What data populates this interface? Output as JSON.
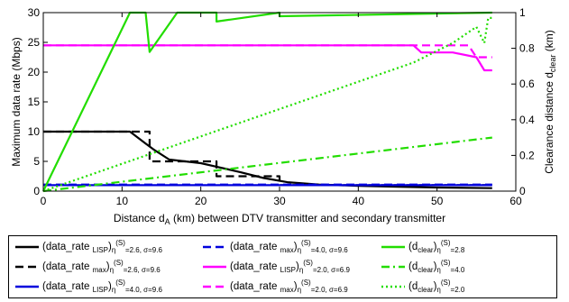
{
  "chart_data": {
    "type": "line",
    "xlabel": "Distance  d_A (km) between DTV transmitter and secondary transmitter",
    "xlabel_parts": {
      "pre": "Distance  d",
      "sub": "A",
      "post": " (km) between DTV transmitter and secondary transmitter"
    },
    "ylabel_left": "Maximum data rate (Mbps)",
    "ylabel_right": {
      "main": "Clearance distance  d",
      "sub": "clear",
      "post": " (km)"
    },
    "xlim": [
      0,
      60
    ],
    "ylim_left": [
      0,
      30
    ],
    "ylim_right": [
      0,
      1
    ],
    "x_ticks": [
      "0",
      "10",
      "20",
      "30",
      "40",
      "50",
      "60"
    ],
    "y_left_ticks": [
      "0",
      "5",
      "10",
      "15",
      "20",
      "25",
      "30"
    ],
    "y_right_ticks": [
      "0",
      "0.2",
      "0.4",
      "0.6",
      "0.8",
      "1"
    ],
    "grid": false,
    "legend_position": "bottom",
    "series": [
      {
        "legend": "(data_rate LISP)η(S)=2.6, σ=9.6",
        "axis": "left",
        "color": "#000000",
        "style": "solid",
        "x": [
          0,
          1,
          5,
          10,
          11,
          12,
          13,
          14,
          16,
          18,
          20,
          22,
          25,
          28,
          31,
          35,
          40,
          45,
          50,
          57
        ],
        "y": [
          10,
          10,
          10,
          10,
          10,
          9,
          8,
          7,
          5.3,
          5,
          4.7,
          4.1,
          3.2,
          2.2,
          1.5,
          1.1,
          0.9,
          0.75,
          0.6,
          0.5
        ]
      },
      {
        "legend": "(data_rate max)η(S)=2.6, σ=9.6",
        "axis": "left",
        "color": "#000000",
        "style": "dashed",
        "x": [
          0,
          1,
          10,
          13.5,
          13.5,
          22,
          22,
          30,
          30,
          57
        ],
        "y": [
          10,
          10,
          10,
          10,
          5,
          5,
          2.5,
          2.5,
          1,
          1
        ]
      },
      {
        "legend": "(data_rate LISP)η(S)=4.0, σ=9.6",
        "axis": "left",
        "color": "#0000dd",
        "style": "solid",
        "x": [
          0,
          57
        ],
        "y": [
          1,
          1
        ]
      },
      {
        "legend": "(data_rate max)η(S)=4.0, σ=9.6",
        "axis": "left",
        "color": "#0000dd",
        "style": "dashed",
        "x": [
          0,
          57
        ],
        "y": [
          1.1,
          1.1
        ]
      },
      {
        "legend": "(data_rate LISP)η(S)=2.0, σ=6.9",
        "axis": "left",
        "color": "#ff00ff",
        "style": "solid",
        "x": [
          0,
          47,
          48,
          52,
          55,
          56,
          57
        ],
        "y": [
          24.5,
          24.5,
          23.3,
          23.3,
          22.5,
          20.3,
          20.3
        ]
      },
      {
        "legend": "(data_rate max)η(S)=2.0, σ=6.9",
        "axis": "left",
        "color": "#ff00ff",
        "style": "dashed",
        "x": [
          0,
          47,
          48,
          54,
          55,
          56,
          57
        ],
        "y": [
          24.5,
          24.5,
          24.5,
          24.5,
          22.5,
          22.5,
          22.5
        ]
      },
      {
        "legend": "(d clear)η(S)=2.8",
        "axis": "right",
        "color": "#22dd00",
        "style": "solid",
        "x": [
          0,
          11,
          13,
          13.5,
          17,
          22,
          22,
          30,
          30,
          57
        ],
        "y": [
          0,
          1,
          1,
          0.78,
          1,
          1,
          0.95,
          1,
          0.98,
          1
        ]
      },
      {
        "legend": "(d clear)η(S)=4.0",
        "axis": "right",
        "color": "#22dd00",
        "style": "dashdot",
        "x": [
          0,
          57
        ],
        "y": [
          0,
          0.3
        ]
      },
      {
        "legend": "(d clear)η(S)=2.0",
        "axis": "right",
        "color": "#22dd00",
        "style": "dotted",
        "x": [
          0,
          47,
          52,
          55,
          56,
          56.5,
          57
        ],
        "y": [
          0,
          0.72,
          0.83,
          0.92,
          0.83,
          0.97,
          0.97
        ]
      }
    ]
  },
  "legend_entries": [
    {
      "pre": "(data_rate ",
      "sub": "LISP",
      "post": ")",
      "sub2": "η",
      "sup": "(S)",
      "cond": "=2.6,  σ=9.6",
      "color": "#000000",
      "style": "solid"
    },
    {
      "pre": "(data_rate ",
      "sub": "max",
      "post": ")",
      "sub2": "η",
      "sup": "(S)",
      "cond": "=4.0,  σ=9.6",
      "color": "#0000dd",
      "style": "dashed"
    },
    {
      "pre": "(d",
      "sub": "clear",
      "post": ")",
      "sub2": "η",
      "sup": "(S)",
      "cond": "=2.8",
      "color": "#22dd00",
      "style": "solid"
    },
    {
      "pre": "(data_rate ",
      "sub": "max",
      "post": ")",
      "sub2": "η",
      "sup": "(S)",
      "cond": "=2.6,  σ=9.6",
      "color": "#000000",
      "style": "dashed"
    },
    {
      "pre": "(data_rate ",
      "sub": "LISP",
      "post": ")",
      "sub2": "η",
      "sup": "(S)",
      "cond": "=2.0,  σ=6.9",
      "color": "#ff00ff",
      "style": "solid"
    },
    {
      "pre": "(d",
      "sub": "clear",
      "post": ")",
      "sub2": "η",
      "sup": "(S)",
      "cond": "=4.0",
      "color": "#22dd00",
      "style": "dashdot"
    },
    {
      "pre": "(data_rate ",
      "sub": "LISP",
      "post": ")",
      "sub2": "η",
      "sup": "(S)",
      "cond": "=4.0,  σ=9.6",
      "color": "#0000dd",
      "style": "solid"
    },
    {
      "pre": "(data_rate ",
      "sub": "max",
      "post": ")",
      "sub2": "η",
      "sup": "(S)",
      "cond": "=2.0,  σ=6.9",
      "color": "#ff00ff",
      "style": "dashed"
    },
    {
      "pre": "(d",
      "sub": "clear",
      "post": ")",
      "sub2": "η",
      "sup": "(S)",
      "cond": "=2.0",
      "color": "#22dd00",
      "style": "dotted"
    }
  ]
}
